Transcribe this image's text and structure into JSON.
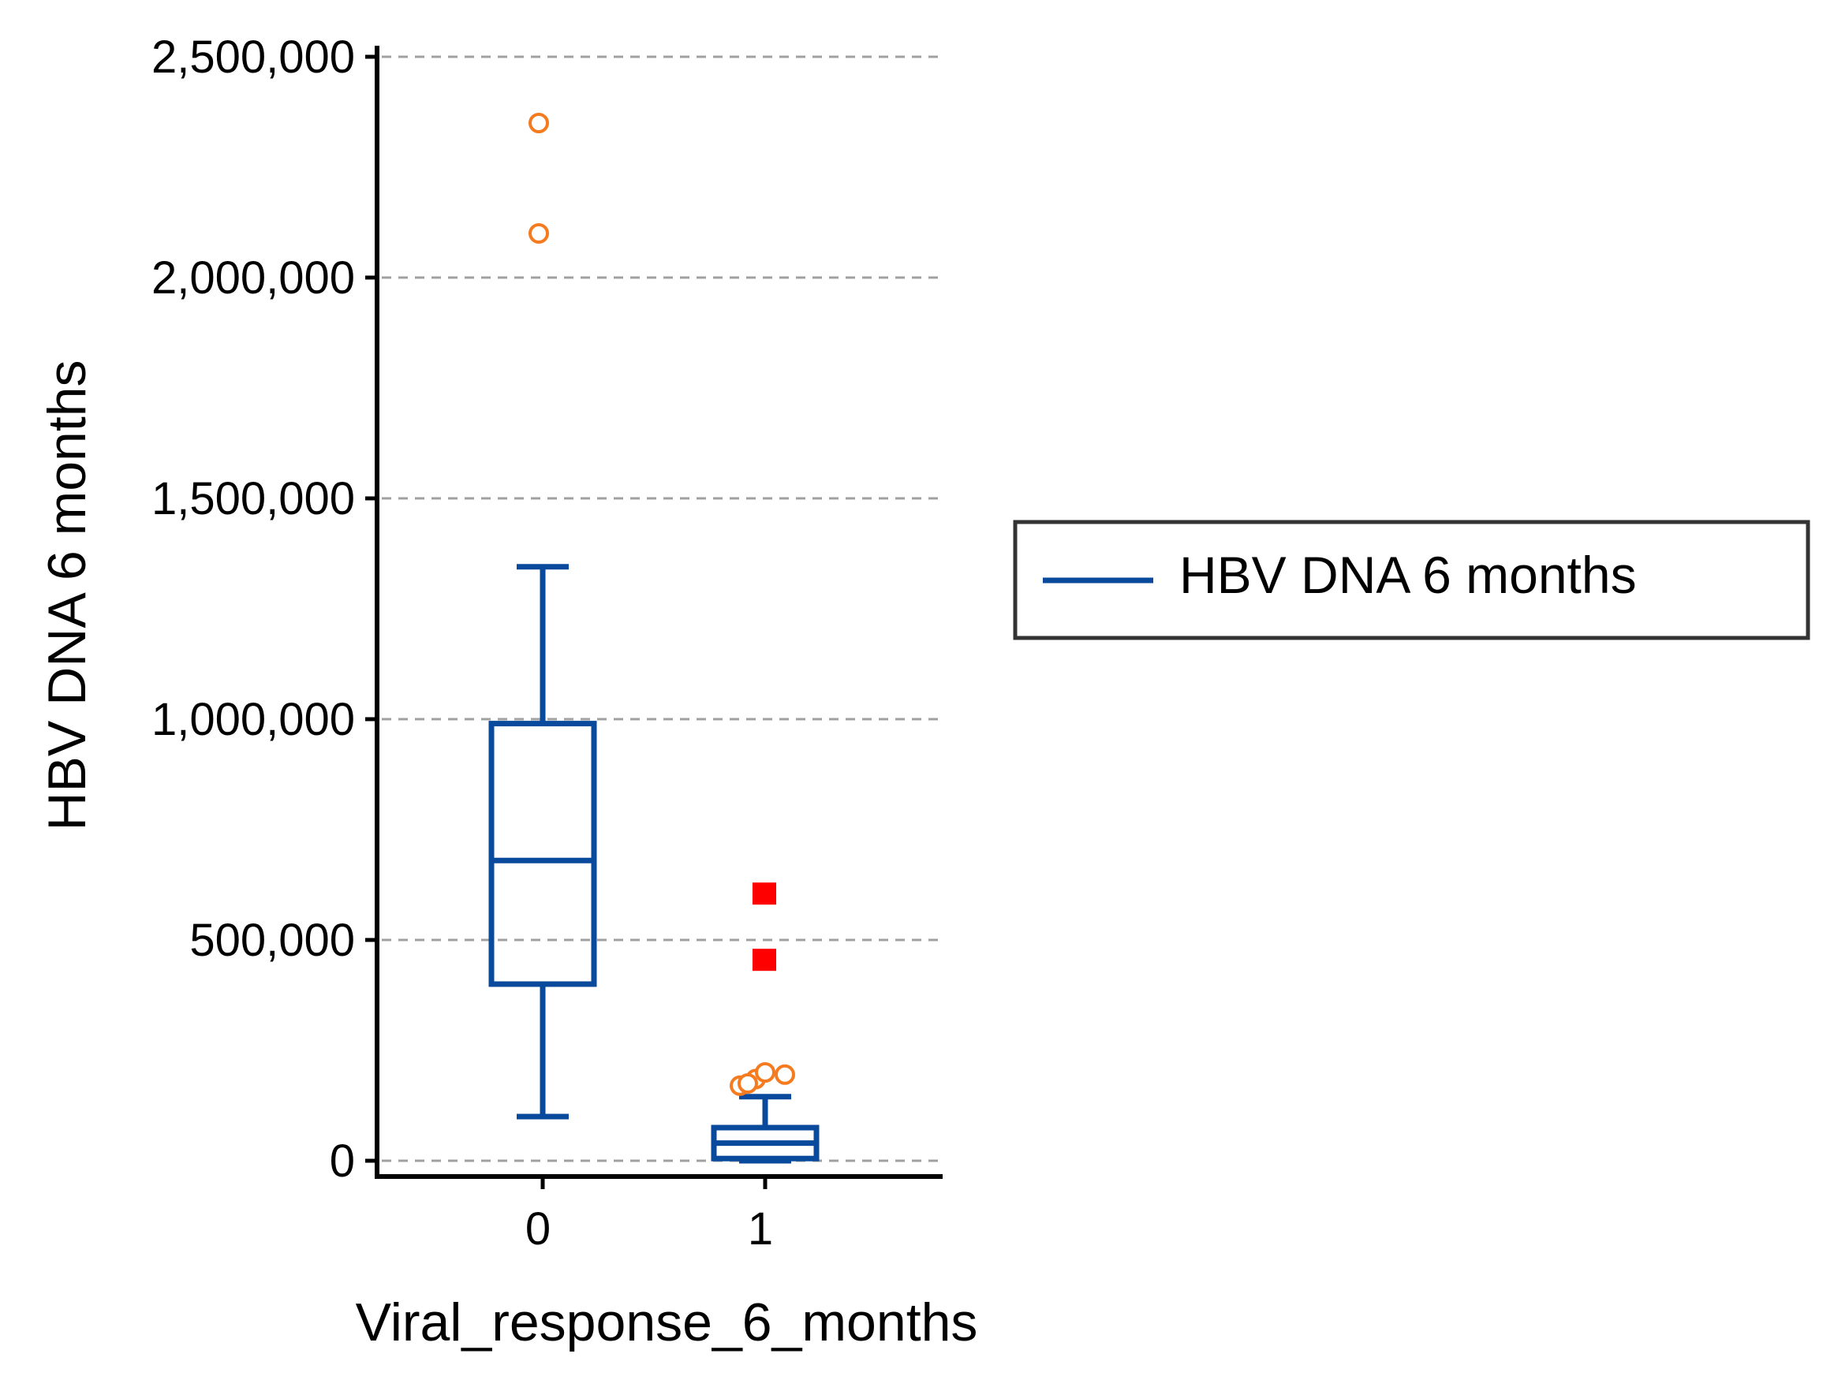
{
  "chart_data": {
    "type": "box",
    "title": "",
    "xlabel": "Viral_response_6_months",
    "ylabel": "HBV DNA 6 months",
    "categories": [
      "0",
      "1"
    ],
    "ylim": [
      0,
      2500000
    ],
    "yticks": [
      0,
      500000,
      1000000,
      1500000,
      2000000,
      2500000
    ],
    "ytick_labels": [
      "0",
      "500,000",
      "1,000,000",
      "1,500,000",
      "2,000,000",
      "2,500,000"
    ],
    "grid": "horizontal-dashed",
    "legend": {
      "position": "right",
      "entries": [
        "HBV DNA 6 months"
      ]
    },
    "series": [
      {
        "name": "HBV DNA 6 months",
        "boxes": [
          {
            "category": "0",
            "whisker_low": 100000,
            "q1": 400000,
            "median": 680000,
            "q3": 990000,
            "whisker_high": 1345000,
            "outliers": [
              2100000,
              2350000
            ],
            "far_outliers": []
          },
          {
            "category": "1",
            "whisker_low": 0,
            "q1": 5000,
            "median": 40000,
            "q3": 75000,
            "whisker_high": 145000,
            "outliers": [
              170000,
              185000,
              200000,
              195000,
              175000
            ],
            "far_outliers": [
              455000,
              605000
            ]
          }
        ]
      }
    ],
    "colors": {
      "box": "#0a4a9c",
      "outlier": "#f47b20",
      "far_outlier": "#ff0000",
      "grid": "#a0a0a0",
      "axis": "#000000",
      "legend_border": "#333333"
    }
  }
}
